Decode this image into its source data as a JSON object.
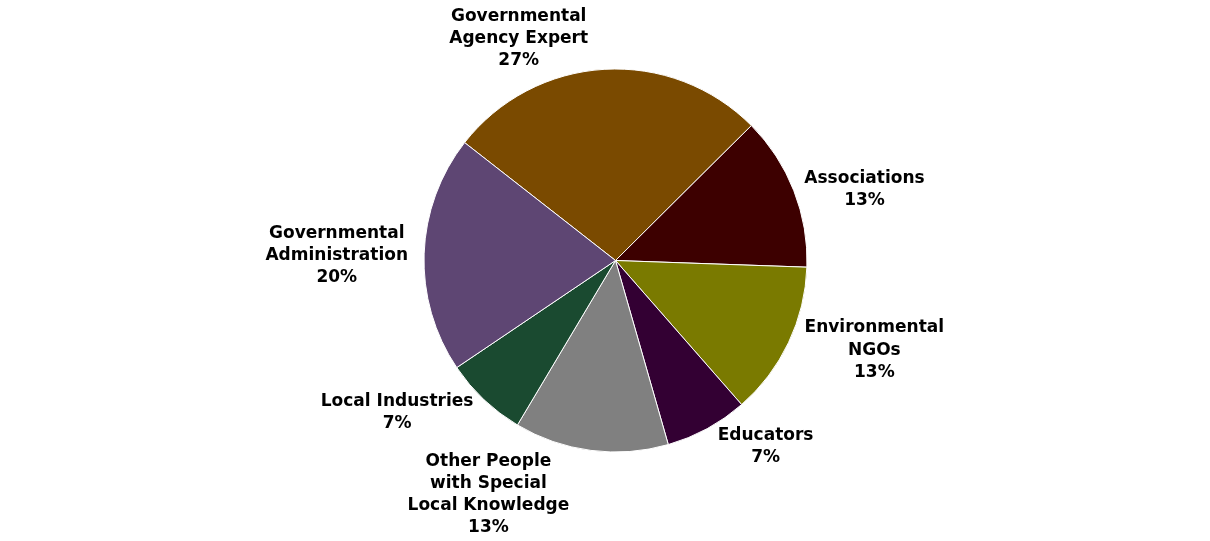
{
  "chart_data": {
    "type": "pie",
    "categories": [
      "Governmental Agency Expert",
      "Associations",
      "Environmental NGOs",
      "Educators",
      "Other People with Special Local Knowledge",
      "Local Industries",
      "Governmental Administration"
    ],
    "values": [
      27,
      13,
      13,
      7,
      13,
      7,
      20
    ],
    "value_labels": [
      "27%",
      "13%",
      "13%",
      "7%",
      "13%",
      "7%",
      "20%"
    ],
    "colors": [
      "#7a4a00",
      "#3d0000",
      "#7a7a00",
      "#330033",
      "#808080",
      "#1a4a30",
      "#5e4673"
    ],
    "legend": false
  }
}
